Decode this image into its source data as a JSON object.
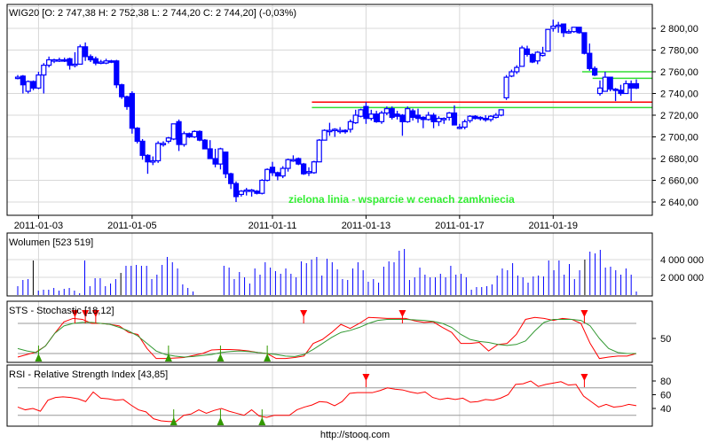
{
  "chart_data": [
    {
      "type": "candlestick",
      "title": "WIG20 [O: 2 747,38  H: 2 752,38  L: 2 744,20  C: 2 744,20] (-0,03%)",
      "ylim": [
        2630,
        2820
      ],
      "yticks": [
        2640,
        2660,
        2680,
        2700,
        2720,
        2740,
        2760,
        2780,
        2800
      ],
      "ytick_labels": [
        "2 640,00",
        "2 660,00",
        "2 680,00",
        "2 700,00",
        "2 720,00",
        "2 740,00",
        "2 760,00",
        "2 780,00",
        "2 800,00"
      ],
      "xticks": [
        {
          "index": 4,
          "label": "2011-01-03"
        },
        {
          "index": 22,
          "label": "2011-01-05"
        },
        {
          "index": 49,
          "label": "2011-01-11"
        },
        {
          "index": 67,
          "label": "2011-01-13"
        },
        {
          "index": 85,
          "label": "2011-01-17"
        },
        {
          "index": 103,
          "label": "2011-01-19"
        }
      ],
      "candles_ohlc": [
        [
          2755,
          2757,
          2753,
          2755
        ],
        [
          2756,
          2757,
          2740,
          2748
        ],
        [
          2742,
          2752,
          2740,
          2751
        ],
        [
          2751,
          2752,
          2743,
          2745
        ],
        [
          2745,
          2760,
          2744,
          2757
        ],
        [
          2757,
          2768,
          2740,
          2766
        ],
        [
          2766,
          2774,
          2764,
          2771
        ],
        [
          2770,
          2772,
          2768,
          2771
        ],
        [
          2771,
          2773,
          2769,
          2771
        ],
        [
          2771,
          2773,
          2769,
          2770
        ],
        [
          2772,
          2773,
          2762,
          2766
        ],
        [
          2766,
          2778,
          2764,
          2767
        ],
        [
          2767,
          2785,
          2767,
          2783
        ],
        [
          2783,
          2787,
          2770,
          2774
        ],
        [
          2774,
          2776,
          2769,
          2771
        ],
        [
          2772,
          2774,
          2766,
          2768
        ],
        [
          2768,
          2771,
          2767,
          2769
        ],
        [
          2768,
          2772,
          2767,
          2770
        ],
        [
          2770,
          2771,
          2768,
          2769
        ],
        [
          2770,
          2771,
          2745,
          2748
        ],
        [
          2748,
          2749,
          2735,
          2737
        ],
        [
          2737,
          2738,
          2725,
          2728
        ],
        [
          2740,
          2742,
          2703,
          2708
        ],
        [
          2708,
          2709,
          2694,
          2696
        ],
        [
          2696,
          2698,
          2679,
          2683
        ],
        [
          2683,
          2684,
          2666,
          2677
        ],
        [
          2677,
          2682,
          2674,
          2678
        ],
        [
          2678,
          2696,
          2676,
          2694
        ],
        [
          2694,
          2696,
          2691,
          2694
        ],
        [
          2696,
          2700,
          2694,
          2699
        ],
        [
          2698,
          2712,
          2697,
          2712
        ],
        [
          2714,
          2716,
          2687,
          2693
        ],
        [
          2693,
          2705,
          2691,
          2703
        ],
        [
          2703,
          2704,
          2699,
          2700
        ],
        [
          2700,
          2706,
          2699,
          2705
        ],
        [
          2705,
          2706,
          2696,
          2697
        ],
        [
          2697,
          2698,
          2689,
          2689
        ],
        [
          2689,
          2697,
          2680,
          2680
        ],
        [
          2680,
          2689,
          2672,
          2675
        ],
        [
          2675,
          2690,
          2670,
          2689
        ],
        [
          2686,
          2686,
          2662,
          2666
        ],
        [
          2666,
          2667,
          2652,
          2657
        ],
        [
          2657,
          2659,
          2640,
          2645
        ],
        [
          2647,
          2651,
          2645,
          2650
        ],
        [
          2650,
          2653,
          2646,
          2651
        ],
        [
          2650,
          2652,
          2645,
          2651
        ],
        [
          2650,
          2651,
          2647,
          2648
        ],
        [
          2648,
          2661,
          2647,
          2660
        ],
        [
          2660,
          2671,
          2659,
          2670
        ],
        [
          2672,
          2677,
          2664,
          2667
        ],
        [
          2667,
          2668,
          2660,
          2664
        ],
        [
          2664,
          2673,
          2662,
          2671
        ],
        [
          2671,
          2680,
          2668,
          2679
        ],
        [
          2679,
          2683,
          2677,
          2679
        ],
        [
          2680,
          2681,
          2674,
          2675
        ],
        [
          2675,
          2676,
          2665,
          2666
        ],
        [
          2667,
          2672,
          2664,
          2668
        ],
        [
          2667,
          2678,
          2666,
          2677
        ],
        [
          2677,
          2698,
          2677,
          2697
        ],
        [
          2697,
          2707,
          2697,
          2706
        ],
        [
          2706,
          2713,
          2701,
          2706
        ],
        [
          2707,
          2708,
          2700,
          2707
        ],
        [
          2706,
          2709,
          2703,
          2706
        ],
        [
          2706,
          2707,
          2703,
          2705
        ],
        [
          2707,
          2716,
          2704,
          2714
        ],
        [
          2713,
          2725,
          2712,
          2720
        ],
        [
          2719,
          2726,
          2718,
          2725
        ],
        [
          2728,
          2732,
          2712,
          2717
        ],
        [
          2717,
          2725,
          2715,
          2721
        ],
        [
          2721,
          2724,
          2713,
          2714
        ],
        [
          2714,
          2724,
          2712,
          2722
        ],
        [
          2722,
          2728,
          2720,
          2726
        ],
        [
          2726,
          2728,
          2716,
          2718
        ],
        [
          2721,
          2724,
          2716,
          2719
        ],
        [
          2720,
          2721,
          2701,
          2714
        ],
        [
          2714,
          2728,
          2713,
          2726
        ],
        [
          2724,
          2726,
          2715,
          2718
        ],
        [
          2720,
          2726,
          2713,
          2717
        ],
        [
          2718,
          2719,
          2708,
          2716
        ],
        [
          2716,
          2723,
          2715,
          2720
        ],
        [
          2720,
          2722,
          2708,
          2714
        ],
        [
          2714,
          2719,
          2710,
          2717
        ],
        [
          2717,
          2718,
          2712,
          2717
        ],
        [
          2718,
          2723,
          2715,
          2722
        ],
        [
          2722,
          2729,
          2711,
          2711
        ],
        [
          2709,
          2712,
          2707,
          2709
        ],
        [
          2709,
          2716,
          2707,
          2714
        ],
        [
          2715,
          2720,
          2713,
          2719
        ],
        [
          2719,
          2720,
          2716,
          2717
        ],
        [
          2718,
          2719,
          2715,
          2717
        ],
        [
          2717,
          2720,
          2714,
          2716
        ],
        [
          2716,
          2720,
          2714,
          2719
        ],
        [
          2718,
          2722,
          2717,
          2720
        ],
        [
          2720,
          2725,
          2719,
          2725
        ],
        [
          2736,
          2757,
          2734,
          2755
        ],
        [
          2756,
          2762,
          2755,
          2760
        ],
        [
          2760,
          2766,
          2758,
          2764
        ],
        [
          2765,
          2784,
          2765,
          2782
        ],
        [
          2781,
          2784,
          2774,
          2776
        ],
        [
          2776,
          2777,
          2768,
          2769
        ],
        [
          2770,
          2779,
          2767,
          2778
        ],
        [
          2775,
          2783,
          2774,
          2777
        ],
        [
          2779,
          2799,
          2779,
          2799
        ],
        [
          2800,
          2808,
          2797,
          2802
        ],
        [
          2803,
          2806,
          2796,
          2803
        ],
        [
          2804,
          2804,
          2792,
          2796
        ],
        [
          2797,
          2799,
          2795,
          2797
        ],
        [
          2797,
          2801,
          2796,
          2801
        ],
        [
          2801,
          2801,
          2795,
          2796
        ],
        [
          2796,
          2796,
          2776,
          2777
        ],
        [
          2777,
          2786,
          2761,
          2763
        ],
        [
          2763,
          2765,
          2756,
          2757
        ],
        [
          2740,
          2752,
          2738,
          2745
        ],
        [
          2742,
          2760,
          2742,
          2755
        ],
        [
          2755,
          2755,
          2742,
          2744
        ],
        [
          2744,
          2745,
          2733,
          2743
        ],
        [
          2743,
          2748,
          2738,
          2740
        ],
        [
          2740,
          2752,
          2740,
          2749
        ],
        [
          2749,
          2752,
          2733,
          2745
        ],
        [
          2749,
          2753,
          2744,
          2745
        ]
      ],
      "levels": [
        {
          "value": 2732,
          "from_index": 60,
          "color": "#ff0000"
        },
        {
          "value": 2727,
          "from_index": 60,
          "color": "#33dd33"
        },
        {
          "value": 2760,
          "from_index": 112,
          "color": "#33dd33"
        },
        {
          "value": 2754,
          "from_index": 114,
          "color": "#33dd33"
        }
      ],
      "annotation": "zielona linia - wsparcie w cenach zamkniecia"
    },
    {
      "type": "bar",
      "title": "Wolumen [523 519]",
      "ylim": [
        0,
        7000000
      ],
      "yticks": [
        2000000,
        4000000
      ],
      "ytick_labels": [
        "2 000 000",
        "4 000 000"
      ],
      "values_millions": [
        1.0,
        1.7,
        1.8,
        3.9,
        0.5,
        0.6,
        0.6,
        0.8,
        0.5,
        0.7,
        0.8,
        0.5,
        0.2,
        3.9,
        1.0,
        1.9,
        1.9,
        1.0,
        1.3,
        1.8,
        2.5,
        3.3,
        3.3,
        3.4,
        3.3,
        3.3,
        1.8,
        2.3,
        3.4,
        4.3,
        3.7,
        3.0,
        1.2,
        0.8,
        0.4,
        0,
        0,
        0,
        0,
        0,
        3.3,
        3.1,
        1.8,
        2.6,
        2.0,
        1.3,
        3.0,
        2.3,
        3.7,
        3.1,
        2.7,
        2.4,
        3.0,
        2.4,
        2.0,
        3.8,
        3.6,
        4.0,
        4.3,
        2.2,
        4.1,
        3.7,
        2.9,
        1.8,
        1.7,
        3.0,
        3.7,
        2.8,
        1.5,
        1.8,
        1.4,
        3.2,
        3.8,
        3.7,
        5.0,
        5.2,
        1.7,
        2.0,
        3.1,
        2.3,
        2.0,
        2.0,
        2.4,
        2.0,
        3.3,
        2.3,
        2.4,
        2.0,
        0.6,
        0.9,
        0.9,
        1.0,
        1.2,
        2.2,
        3.0,
        2.8,
        3.6,
        2.2,
        2.0,
        1.4,
        2.1,
        2.2,
        2.1,
        3.9,
        2.8,
        3.9,
        2.3,
        3.5,
        1.8,
        2.8,
        4.0,
        4.9,
        4.7,
        5.1,
        3.1,
        3.2,
        2.8,
        2.3,
        3.0,
        2.3,
        0.4
      ]
    },
    {
      "type": "line",
      "title": "STS - Stochastic [18,12]",
      "ylim": [
        0,
        100
      ],
      "yticks": [
        50
      ],
      "ytick_labels": [
        "50"
      ],
      "bands": [
        20,
        80
      ],
      "series": [
        {
          "name": "K",
          "color": "#ff0000",
          "values": [
            13,
            18,
            23,
            35,
            60,
            83,
            90,
            88,
            80,
            80,
            78,
            75,
            62,
            58,
            30,
            10,
            10,
            11,
            12,
            16,
            20,
            27,
            28,
            28,
            27,
            25,
            22,
            20,
            10,
            10,
            12,
            15,
            40,
            48,
            62,
            78,
            70,
            80,
            92,
            91,
            90,
            90,
            90,
            85,
            82,
            83,
            72,
            62,
            40,
            40,
            42,
            25,
            38,
            40,
            58,
            88,
            92,
            90,
            86,
            90,
            88,
            80,
            40,
            10,
            13,
            15,
            15,
            20
          ]
        },
        {
          "name": "D",
          "color": "#339933",
          "values": [
            30,
            25,
            22,
            35,
            60,
            75,
            80,
            82,
            82,
            80,
            78,
            72,
            65,
            55,
            40,
            25,
            18,
            15,
            13,
            14,
            16,
            18,
            22,
            24,
            25,
            24,
            22,
            20,
            18,
            15,
            14,
            18,
            28,
            40,
            52,
            62,
            66,
            72,
            80,
            86,
            88,
            88,
            88,
            87,
            86,
            84,
            80,
            72,
            58,
            48,
            44,
            42,
            38,
            36,
            38,
            45,
            65,
            82,
            88,
            88,
            88,
            86,
            75,
            50,
            30,
            22,
            20,
            20
          ]
        }
      ],
      "signals_down_index": [
        11,
        13,
        15,
        55,
        74,
        109
      ],
      "signals_up_index": [
        4,
        29,
        39,
        48
      ]
    },
    {
      "type": "line",
      "title": "RSI - Relative Strength Index [43,85]",
      "ylim": [
        10,
        95
      ],
      "yticks": [
        40,
        60,
        80
      ],
      "ytick_labels": [
        "40",
        "60",
        "80"
      ],
      "bands": [
        30,
        70
      ],
      "series": [
        {
          "name": "RSI",
          "color": "#ff0000",
          "values": [
            42,
            38,
            40,
            36,
            52,
            56,
            57,
            56,
            54,
            50,
            64,
            55,
            54,
            52,
            53,
            45,
            38,
            35,
            25,
            22,
            21,
            21,
            30,
            32,
            38,
            33,
            37,
            40,
            36,
            33,
            30,
            38,
            29,
            27,
            30,
            30,
            30,
            38,
            42,
            45,
            50,
            49,
            44,
            50,
            62,
            63,
            63,
            63,
            66,
            70,
            68,
            67,
            64,
            62,
            64,
            56,
            53,
            55,
            53,
            55,
            49,
            50,
            53,
            52,
            55,
            60,
            75,
            76,
            80,
            72,
            75,
            77,
            79,
            74,
            75,
            58,
            50,
            42,
            46,
            42,
            43,
            46,
            44
          ]
        }
      ],
      "signals_down_index": [
        67,
        109
      ],
      "signals_up_index": [
        30,
        39,
        47
      ]
    }
  ],
  "colors": {
    "candle": "#0000ff",
    "grid": "#d8d8d8",
    "band": "#999999",
    "signal_down": "#ff0000",
    "signal_up": "#339900",
    "annotation": "#33ee33"
  },
  "footer": "http://stooq.com"
}
